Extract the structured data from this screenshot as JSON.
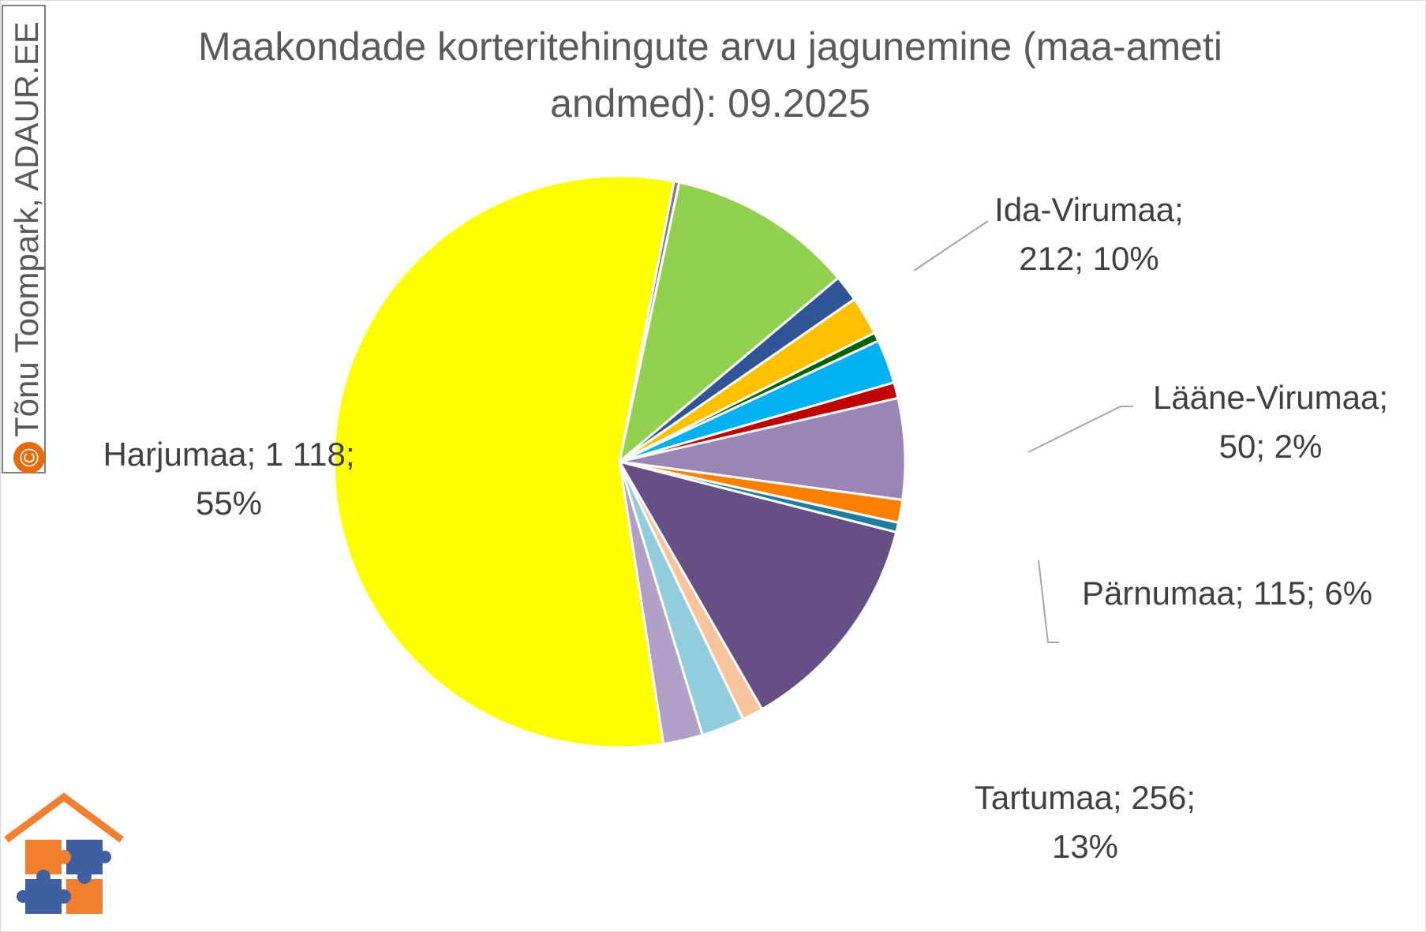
{
  "chart_data": {
    "type": "pie",
    "title_line1": "Maakondade korteritehingute arvu jagunemine (maa-ameti",
    "title_line2": "andmed): 09.2025",
    "slices": [
      {
        "name": "Harjumaa",
        "value": 1118,
        "color": "#ffff00",
        "label_line1": "Harjumaa; 1 118;",
        "label_line2": "55%"
      },
      {
        "name": "",
        "value": 6,
        "color": "#7f7f7f"
      },
      {
        "name": "Ida-Virumaa",
        "value": 212,
        "color": "#92d050",
        "label_line1": "Ida-Virumaa;",
        "label_line2": "212; 10%"
      },
      {
        "name": "",
        "value": 30,
        "color": "#2f5597"
      },
      {
        "name": "",
        "value": 44,
        "color": "#ffc000"
      },
      {
        "name": "",
        "value": 10,
        "color": "#006100"
      },
      {
        "name": "Lääne-Virumaa",
        "value": 50,
        "color": "#00b0f0",
        "label_line1": "Lääne-Virumaa;",
        "label_line2": "50; 2%"
      },
      {
        "name": "",
        "value": 18,
        "color": "#c00000"
      },
      {
        "name": "Pärnumaa",
        "value": 115,
        "color": "#9a86b5",
        "label_line1": "Pärnumaa; 115; 6%"
      },
      {
        "name": "",
        "value": 26,
        "color": "#ff7f00"
      },
      {
        "name": "",
        "value": 11,
        "color": "#1f7ca0"
      },
      {
        "name": "Tartumaa",
        "value": 256,
        "color": "#664f84",
        "label_line1": "Tartumaa; 256;",
        "label_line2": "13%"
      },
      {
        "name": "",
        "value": 24,
        "color": "#f8c49c"
      },
      {
        "name": "",
        "value": 49,
        "color": "#92cddd"
      },
      {
        "name": "",
        "value": 45,
        "color": "#b1a0c7"
      }
    ]
  },
  "watermark": {
    "text": "Tõnu Toompark, ADAUR.EE",
    "symbol": "©"
  },
  "logo": {
    "name": "adaur-house-puzzle-logo",
    "colors": {
      "roof": "#f07f2f",
      "orange": "#f07f2f",
      "blue": "#3f5fa0"
    }
  }
}
